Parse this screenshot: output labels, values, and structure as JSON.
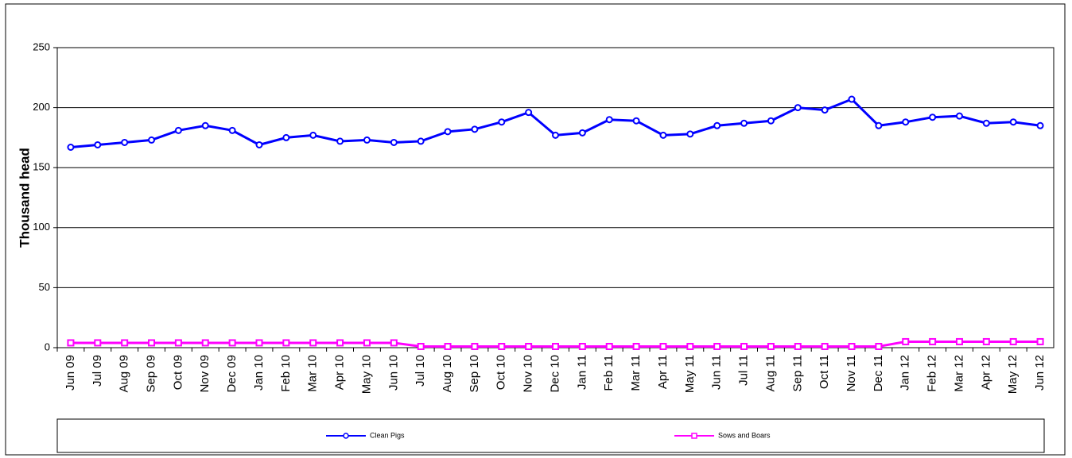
{
  "chart_data": {
    "type": "line",
    "categories": [
      "Jun 09",
      "Jul 09",
      "Aug 09",
      "Sep 09",
      "Oct 09",
      "Nov 09",
      "Dec 09",
      "Jan 10",
      "Feb 10",
      "Mar 10",
      "Apr 10",
      "May 10",
      "Jun 10",
      "Jul 10",
      "Aug 10",
      "Sep 10",
      "Oct 10",
      "Nov 10",
      "Dec 10",
      "Jan 11",
      "Feb 11",
      "Mar 11",
      "Apr 11",
      "May 11",
      "Jun 11",
      "Jul 11",
      "Aug 11",
      "Sep 11",
      "Oct 11",
      "Nov 11",
      "Dec 11",
      "Jan 12",
      "Feb 12",
      "Mar 12",
      "Apr 12",
      "May 12",
      "Jun 12"
    ],
    "series": [
      {
        "name": "Clean Pigs",
        "color": "#0000ff",
        "marker": "circle",
        "values": [
          167,
          169,
          171,
          173,
          181,
          185,
          181,
          169,
          175,
          177,
          172,
          173,
          171,
          172,
          180,
          182,
          188,
          196,
          177,
          179,
          190,
          189,
          177,
          178,
          185,
          187,
          189,
          200,
          198,
          207,
          185,
          188,
          192,
          193,
          187,
          188,
          185
        ]
      },
      {
        "name": "Sows and Boars",
        "color": "#ff00ff",
        "marker": "square",
        "values": [
          4,
          4,
          4,
          4,
          4,
          4,
          4,
          4,
          4,
          4,
          4,
          4,
          4,
          1,
          1,
          1,
          1,
          1,
          1,
          1,
          1,
          1,
          1,
          1,
          1,
          1,
          1,
          1,
          1,
          1,
          1,
          5,
          5,
          5,
          5,
          5,
          5
        ]
      }
    ],
    "ylabel": "Thousand head",
    "ylim": [
      0,
      250
    ],
    "yticks": [
      0,
      50,
      100,
      150,
      200,
      250
    ],
    "grid": true,
    "legend": "bottom"
  }
}
